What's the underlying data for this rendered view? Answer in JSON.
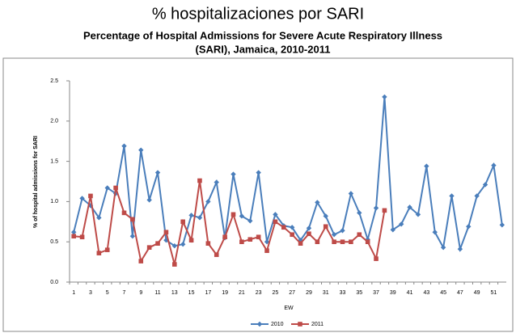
{
  "chart_data": {
    "type": "line",
    "title": "% hospitalizaciones por SARI",
    "subtitle": [
      "Percentage of Hospital Admissions for Severe Acute Respiratory Illness",
      "(SARI), Jamaica, 2010-2011"
    ],
    "x_label": "EW",
    "y_label": "% of hospital admissions for SARI",
    "categories": [
      1,
      null,
      3,
      null,
      5,
      null,
      7,
      null,
      9,
      null,
      11,
      null,
      13,
      null,
      15,
      null,
      17,
      null,
      19,
      null,
      21,
      null,
      23,
      null,
      25,
      null,
      27,
      null,
      29,
      null,
      31,
      null,
      33,
      null,
      35,
      null,
      37,
      null,
      39,
      null,
      41,
      null,
      43,
      null,
      45,
      null,
      47,
      null,
      49,
      null,
      51,
      null
    ],
    "series": [
      {
        "name": "2010",
        "color": "#4a7ebb",
        "marker": "diamond",
        "values": [
          0.62,
          1.04,
          0.95,
          0.8,
          1.17,
          1.1,
          1.69,
          0.57,
          1.64,
          1.02,
          1.36,
          0.52,
          0.45,
          0.47,
          0.83,
          0.8,
          1.0,
          1.24,
          0.55,
          1.34,
          0.82,
          0.76,
          1.36,
          0.5,
          0.84,
          0.7,
          0.68,
          0.52,
          0.67,
          0.99,
          0.82,
          0.59,
          0.64,
          1.1,
          0.86,
          0.53,
          0.92,
          2.3,
          0.65,
          0.72,
          0.93,
          0.84,
          1.44,
          0.62,
          0.43,
          1.07,
          0.41,
          0.69,
          1.07,
          1.21,
          1.45,
          0.71
        ]
      },
      {
        "name": "2011",
        "color": "#be4b48",
        "marker": "square",
        "values": [
          0.57,
          0.56,
          1.07,
          0.36,
          0.4,
          1.17,
          0.86,
          0.78,
          0.26,
          0.43,
          0.48,
          0.62,
          0.22,
          0.75,
          0.52,
          1.26,
          0.48,
          0.34,
          0.56,
          0.84,
          0.5,
          0.53,
          0.56,
          0.39,
          0.75,
          0.68,
          0.59,
          0.48,
          0.6,
          0.5,
          0.69,
          0.5,
          0.5,
          0.5,
          0.59,
          0.5,
          0.29,
          0.89,
          null,
          null,
          null,
          null,
          null,
          null,
          null,
          null,
          null,
          null,
          null,
          null,
          null,
          null
        ]
      }
    ],
    "ylim": [
      0,
      2.5
    ],
    "yticks": [
      {
        "value": 0,
        "label": "0.0"
      },
      0.5,
      {
        "value": 1,
        "label": "1.0"
      },
      1.5,
      {
        "value": 2,
        "label": "2.0"
      },
      2.5
    ],
    "grid": false,
    "legend": "bottom"
  }
}
